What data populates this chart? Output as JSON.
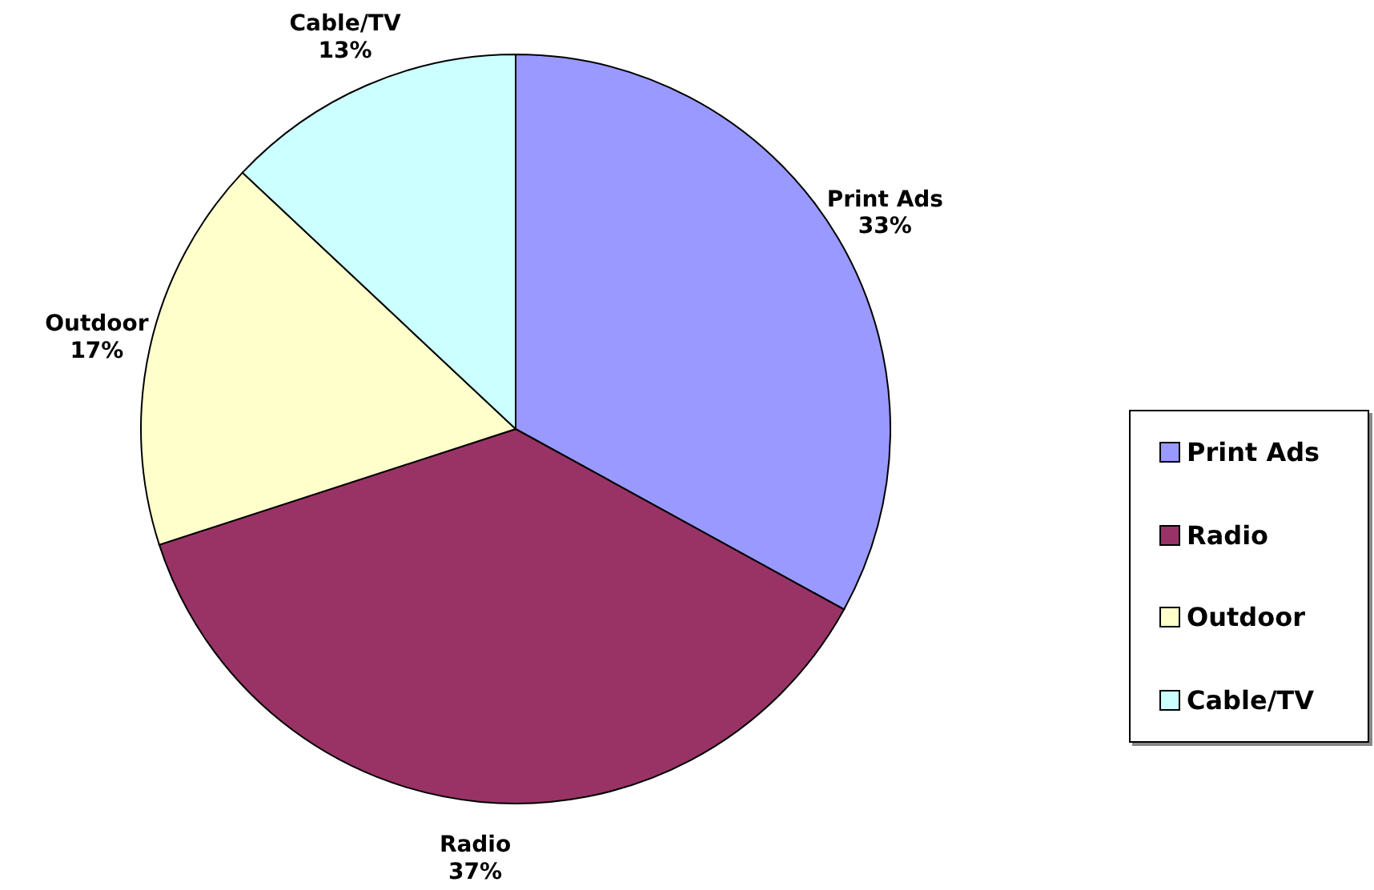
{
  "chart_data": {
    "type": "pie",
    "categories": [
      "Print Ads",
      "Radio",
      "Outdoor",
      "Cable/TV"
    ],
    "values": [
      33,
      37,
      17,
      13
    ],
    "value_labels": [
      "33%",
      "37%",
      "17%",
      "13%"
    ],
    "colors": [
      "#9999ff",
      "#993366",
      "#ffffcc",
      "#ccffff"
    ],
    "legend": "right"
  }
}
